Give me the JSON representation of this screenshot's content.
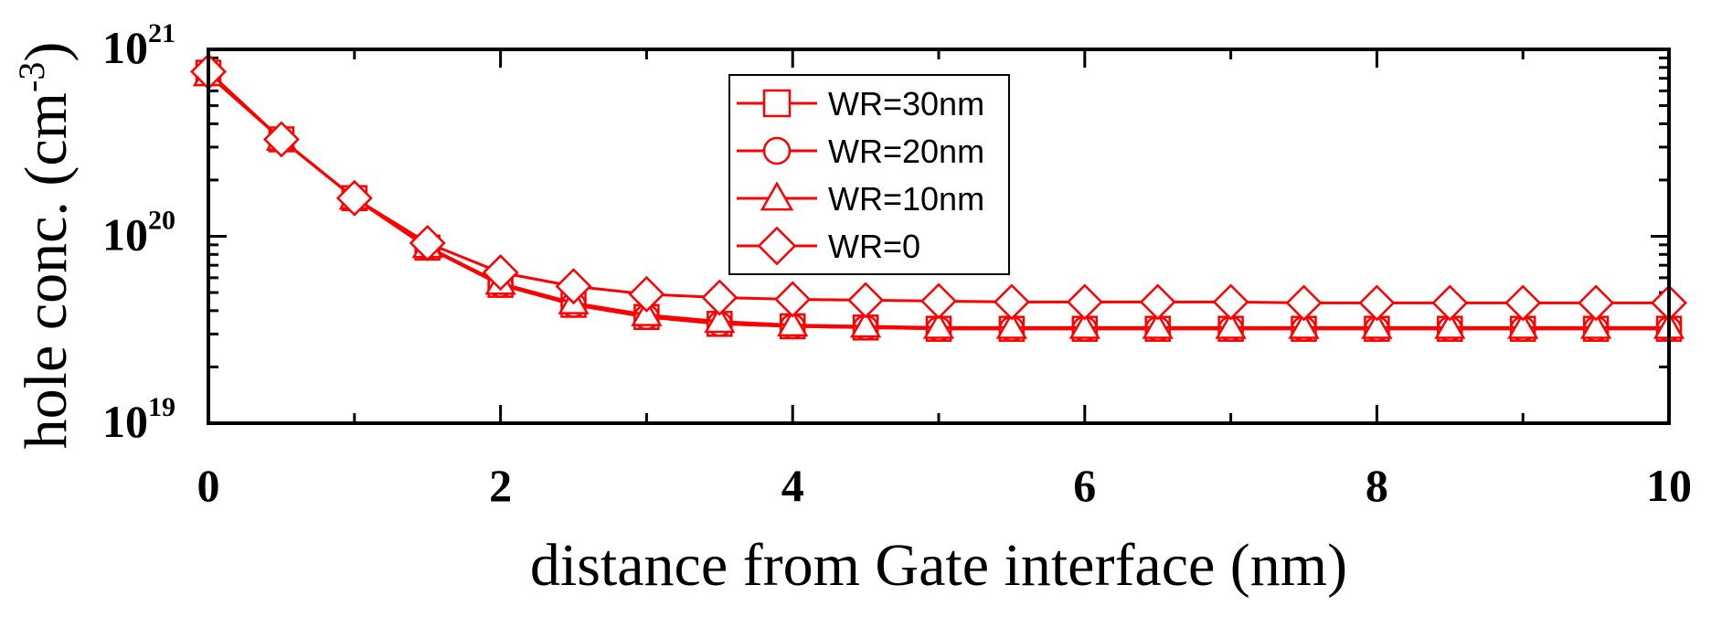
{
  "chart_data": {
    "type": "line",
    "xlabel": "distance from Gate interface (nm)",
    "ylabel": {
      "main": "hole conc. (cm",
      "sup": "-3",
      "close": ")"
    },
    "xlim": [
      0,
      10
    ],
    "ylim": [
      1e+19,
      1e+21
    ],
    "yscale": "log",
    "x_ticks": [
      0,
      2,
      4,
      6,
      8,
      10
    ],
    "y_ticks": [
      {
        "value": 1e+19,
        "base": "10",
        "exp": "19"
      },
      {
        "value": 1e+20,
        "base": "10",
        "exp": "20"
      },
      {
        "value": 1e+21,
        "base": "10",
        "exp": "21"
      }
    ],
    "grid": false,
    "legend_position": "top-center",
    "line_color": "#ff0000",
    "x": [
      0,
      0.5,
      1,
      1.5,
      2,
      2.5,
      3,
      3.5,
      4,
      4.5,
      5,
      5.5,
      6,
      6.5,
      7,
      7.5,
      8,
      8.5,
      9,
      9.5,
      10
    ],
    "series": [
      {
        "name": "WR=30nm",
        "marker": "square",
        "values": [
          7.5e+20,
          3.3e+20,
          1.6e+20,
          8.7e+19,
          5.5e+19,
          4.3e+19,
          3.7e+19,
          3.4e+19,
          3.3e+19,
          3.25e+19,
          3.2e+19,
          3.2e+19,
          3.2e+19,
          3.2e+19,
          3.2e+19,
          3.2e+19,
          3.2e+19,
          3.2e+19,
          3.2e+19,
          3.2e+19,
          3.2e+19
        ]
      },
      {
        "name": "WR=20nm",
        "marker": "circle",
        "values": [
          7.4e+20,
          3.3e+20,
          1.6e+20,
          8.7e+19,
          5.5e+19,
          4.3e+19,
          3.7e+19,
          3.4e+19,
          3.3e+19,
          3.25e+19,
          3.2e+19,
          3.2e+19,
          3.2e+19,
          3.2e+19,
          3.2e+19,
          3.2e+19,
          3.2e+19,
          3.2e+19,
          3.2e+19,
          3.2e+19,
          3.2e+19
        ]
      },
      {
        "name": "WR=10nm",
        "marker": "triangle",
        "values": [
          7.3e+20,
          3.3e+20,
          1.6e+20,
          8.8e+19,
          5.6e+19,
          4.4e+19,
          3.8e+19,
          3.5e+19,
          3.35e+19,
          3.3e+19,
          3.25e+19,
          3.25e+19,
          3.25e+19,
          3.25e+19,
          3.25e+19,
          3.25e+19,
          3.25e+19,
          3.25e+19,
          3.25e+19,
          3.25e+19,
          3.25e+19
        ]
      },
      {
        "name": "WR=0",
        "marker": "diamond",
        "values": [
          7.6e+20,
          3.3e+20,
          1.6e+20,
          9.2e+19,
          6.4e+19,
          5.4e+19,
          4.9e+19,
          4.7e+19,
          4.6e+19,
          4.55e+19,
          4.5e+19,
          4.45e+19,
          4.45e+19,
          4.45e+19,
          4.45e+19,
          4.4e+19,
          4.4e+19,
          4.4e+19,
          4.4e+19,
          4.4e+19,
          4.4e+19
        ]
      }
    ]
  }
}
